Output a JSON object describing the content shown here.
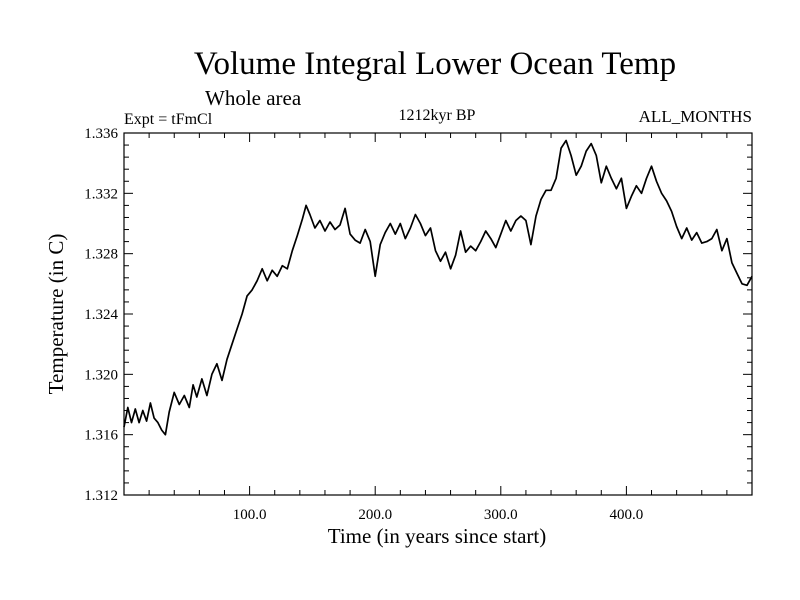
{
  "chart_data": {
    "type": "line",
    "title": "Volume Integral Lower Ocean Temp",
    "subtitle": "Whole area",
    "experiment_label": "Expt = tFmCl",
    "period_label": "1212kyr BP",
    "months_label": "ALL_MONTHS",
    "xlabel": "Time (in years since start)",
    "ylabel": "Temperature (in C)",
    "xlim": [
      0,
      500
    ],
    "ylim": [
      1.312,
      1.336
    ],
    "x_ticks": [
      100,
      200,
      300,
      400
    ],
    "x_tick_labels": [
      "100.0",
      "200.0",
      "300.0",
      "400.0"
    ],
    "y_ticks": [
      1.312,
      1.316,
      1.32,
      1.324,
      1.328,
      1.332,
      1.336
    ],
    "y_tick_labels": [
      "1.312",
      "1.316",
      "1.320",
      "1.324",
      "1.328",
      "1.332",
      "1.336"
    ],
    "grid": false,
    "line_color": "#000000",
    "series": [
      {
        "name": "Volume Integral Lower Ocean Temp",
        "x": [
          0,
          3,
          6,
          9,
          12,
          15,
          18,
          21,
          24,
          27,
          30,
          33,
          36,
          40,
          44,
          48,
          52,
          55,
          58,
          62,
          66,
          70,
          74,
          78,
          82,
          86,
          90,
          94,
          98,
          102,
          106,
          110,
          114,
          118,
          122,
          126,
          130,
          134,
          138,
          142,
          145,
          148,
          152,
          156,
          160,
          164,
          168,
          172,
          176,
          180,
          184,
          188,
          192,
          196,
          200,
          204,
          208,
          212,
          216,
          220,
          224,
          228,
          232,
          236,
          240,
          244,
          248,
          252,
          256,
          260,
          264,
          268,
          272,
          276,
          280,
          284,
          288,
          292,
          296,
          300,
          304,
          308,
          312,
          316,
          320,
          324,
          328,
          332,
          336,
          340,
          344,
          348,
          352,
          356,
          360,
          364,
          368,
          372,
          376,
          380,
          384,
          388,
          392,
          396,
          400,
          404,
          408,
          412,
          416,
          420,
          424,
          428,
          432,
          436,
          440,
          444,
          448,
          452,
          456,
          460,
          464,
          468,
          472,
          476,
          480,
          484,
          488,
          492,
          496,
          500
        ],
        "values": [
          1.3165,
          1.3178,
          1.3168,
          1.3177,
          1.3168,
          1.3176,
          1.3169,
          1.3181,
          1.3171,
          1.3168,
          1.3163,
          1.316,
          1.3175,
          1.3188,
          1.318,
          1.3186,
          1.3178,
          1.3193,
          1.3185,
          1.3197,
          1.3186,
          1.32,
          1.3207,
          1.3196,
          1.321,
          1.322,
          1.323,
          1.324,
          1.3252,
          1.3256,
          1.3262,
          1.327,
          1.3262,
          1.3269,
          1.3265,
          1.3272,
          1.327,
          1.3282,
          1.3292,
          1.3303,
          1.3312,
          1.3306,
          1.3297,
          1.3302,
          1.3295,
          1.3301,
          1.3296,
          1.3299,
          1.331,
          1.3293,
          1.3289,
          1.3287,
          1.3296,
          1.3288,
          1.3265,
          1.3286,
          1.3294,
          1.33,
          1.3293,
          1.33,
          1.329,
          1.3297,
          1.3306,
          1.33,
          1.3292,
          1.3297,
          1.3282,
          1.3275,
          1.3281,
          1.327,
          1.3279,
          1.3295,
          1.3281,
          1.3285,
          1.3282,
          1.3288,
          1.3295,
          1.329,
          1.3284,
          1.3293,
          1.3302,
          1.3295,
          1.3302,
          1.3305,
          1.3302,
          1.3286,
          1.3305,
          1.3316,
          1.3322,
          1.3322,
          1.333,
          1.335,
          1.3355,
          1.3345,
          1.3332,
          1.3338,
          1.3348,
          1.3353,
          1.3345,
          1.3327,
          1.3338,
          1.333,
          1.3323,
          1.333,
          1.331,
          1.3318,
          1.3325,
          1.332,
          1.333,
          1.3338,
          1.3328,
          1.332,
          1.3315,
          1.3308,
          1.3298,
          1.329,
          1.3297,
          1.3289,
          1.3294,
          1.3287,
          1.3288,
          1.329,
          1.3296,
          1.3282,
          1.329,
          1.3274,
          1.3267,
          1.326,
          1.3259,
          1.3265
        ]
      }
    ]
  }
}
